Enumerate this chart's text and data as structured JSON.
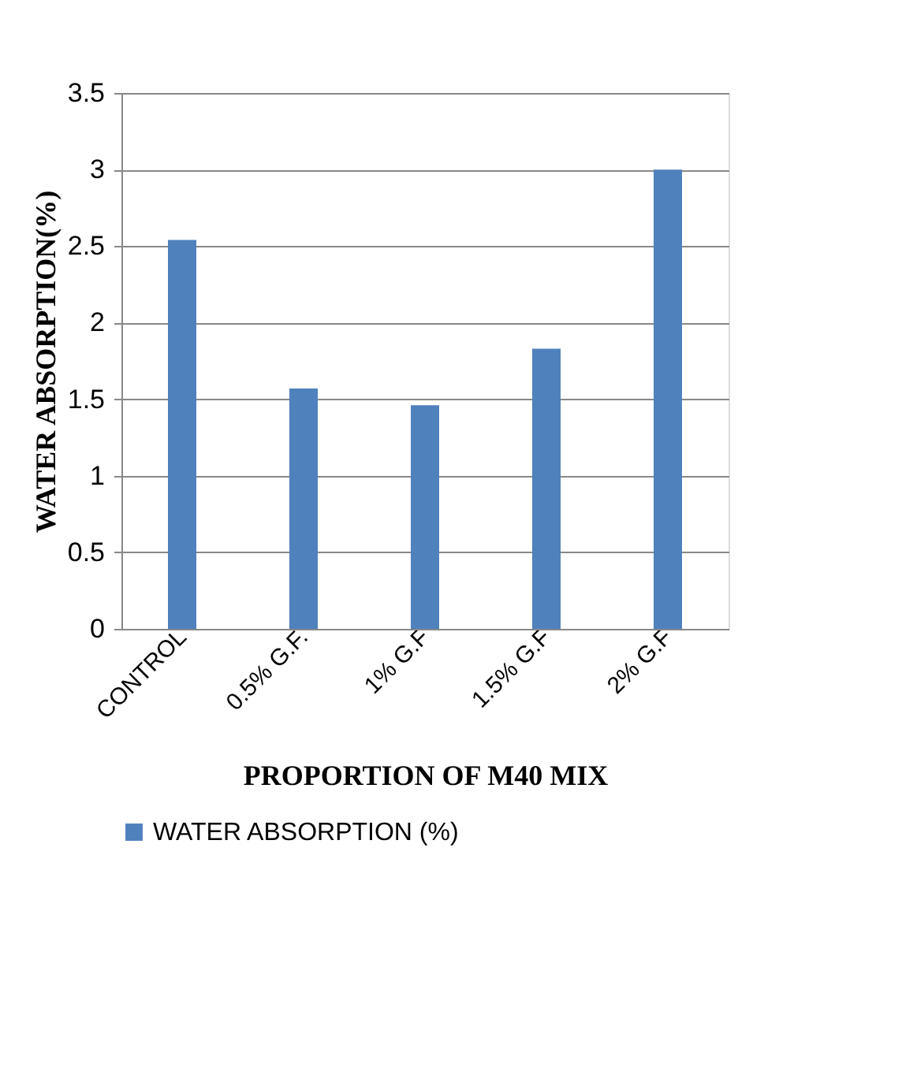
{
  "chart_data": {
    "type": "bar",
    "xlabel": "PROPORTION OF M40 MIX",
    "ylabel": "WATER ABSORPTION(%)",
    "categories": [
      "CONTROL",
      "0.5% G.F.",
      "1% G.F",
      "1.5% G.F",
      "2% G.F"
    ],
    "series": [
      {
        "name": "WATER ABSORPTION (%)",
        "color": "#4f81bd",
        "values": [
          2.54,
          1.57,
          1.46,
          1.83,
          3.0
        ]
      }
    ],
    "ylim": [
      0,
      3.5
    ],
    "yticks": [
      0,
      0.5,
      1,
      1.5,
      2,
      2.5,
      3,
      3.5
    ],
    "grid": "y",
    "legend": "bottom"
  }
}
